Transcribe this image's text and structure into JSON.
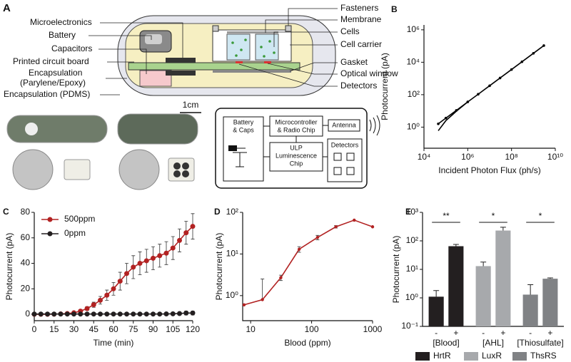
{
  "panel_a": {
    "panel": "A",
    "left_labels": [
      "Microelectronics",
      "Battery",
      "Capacitors",
      "Printed circuit board",
      "Encapsulation",
      "(Parylene/Epoxy)",
      "Encapsulation (PDMS)"
    ],
    "right_labels": [
      "Fasteners",
      "Membrane",
      "Cells",
      "Cell carrier",
      "Gasket",
      "Optical window",
      "Detectors"
    ],
    "scale_bar": "1cm",
    "block_diagram": {
      "battery": [
        "Battery",
        "& Caps"
      ],
      "microcontroller": [
        "Microcontroller",
        "& Radio Chip"
      ],
      "antenna": "Antenna",
      "luminescence": [
        "ULP",
        "Luminescence",
        "Chip"
      ],
      "detectors": "Detectors"
    }
  },
  "chart_data": [
    {
      "type": "line",
      "panel": "B",
      "xlabel": "Incident Photon Flux  (ph/s)",
      "ylabel": "Photocurrent (pA)",
      "xlog": true,
      "ylog": true,
      "x": [
        45000,
        100000,
        300000,
        1000000,
        3000000,
        10000000,
        30000000,
        100000000,
        300000000,
        1000000000,
        3000000000
      ],
      "series": [
        {
          "color": "#000000",
          "markers": true,
          "values": [
            1.6,
            3.6,
            10.7,
            36,
            107,
            356,
            1070,
            3560,
            10700,
            35600,
            107000
          ]
        },
        {
          "color": "#000000",
          "values": [
            0.6,
            2.5,
            9.5,
            36,
            null,
            null,
            null,
            null,
            null,
            null,
            null
          ]
        }
      ],
      "xlim": [
        10000,
        10000000000
      ],
      "ylim": [
        0.05,
        2000000
      ],
      "xticks": [
        {
          "value": 10000,
          "label": "10⁴"
        },
        {
          "value": 1000000,
          "label": "10⁶"
        },
        {
          "value": 100000000,
          "label": "10⁸"
        },
        {
          "value": 10000000000,
          "label": "10¹⁰"
        }
      ],
      "yticks": [
        {
          "value": 1,
          "label": "10⁰"
        },
        {
          "value": 100,
          "label": "10²"
        },
        {
          "value": 10000,
          "label": "10⁴"
        },
        {
          "value": 1000000,
          "label": "10⁶"
        }
      ]
    },
    {
      "type": "line",
      "panel": "C",
      "xlabel": "Time (min)",
      "ylabel": "Photocurrent (pA)",
      "legend": "upper left",
      "x": [
        0,
        5,
        10,
        15,
        20,
        25,
        30,
        35,
        40,
        45,
        50,
        55,
        60,
        65,
        70,
        75,
        80,
        85,
        90,
        95,
        100,
        105,
        110,
        115,
        120
      ],
      "series": [
        {
          "name": "500ppm",
          "color": "#b22222",
          "markers": true,
          "values": [
            0,
            0,
            0,
            0.1,
            0.3,
            0.6,
            1.2,
            2.5,
            4.5,
            7.5,
            11,
            15,
            20,
            26,
            32,
            37,
            40,
            42,
            44,
            46,
            48,
            52,
            58,
            64,
            69
          ],
          "errors": [
            0.3,
            0.3,
            0.3,
            0.3,
            0.4,
            0.5,
            0.7,
            1,
            1.5,
            2,
            3,
            4,
            5,
            7,
            8,
            9,
            9,
            9,
            9,
            9,
            9,
            9,
            9,
            9,
            10
          ]
        },
        {
          "name": "0ppm",
          "color": "#231f20",
          "markers": true,
          "values": [
            0.2,
            0.2,
            0.2,
            0.2,
            0.2,
            0.2,
            0.2,
            0.2,
            0.2,
            0.2,
            0.2,
            0.2,
            0.2,
            0.2,
            0.2,
            0.2,
            0.2,
            0.2,
            0.2,
            0.2,
            0.3,
            0.4,
            0.6,
            1,
            1
          ],
          "errors": [
            0.3,
            0.3,
            0.3,
            0.3,
            0.3,
            0.3,
            0.3,
            0.3,
            0.3,
            0.3,
            0.3,
            0.3,
            0.3,
            0.3,
            0.3,
            0.3,
            0.3,
            0.3,
            0.3,
            0.3,
            0.4,
            0.5,
            1,
            1.5,
            1.5
          ]
        }
      ],
      "xlim": [
        0,
        120
      ],
      "ylim": [
        -5,
        80
      ],
      "xticks": [
        0,
        15,
        30,
        45,
        60,
        75,
        90,
        105,
        120
      ],
      "yticks": [
        0,
        20,
        40,
        60,
        80
      ]
    },
    {
      "type": "line",
      "panel": "D",
      "xlabel": "Blood (ppm)",
      "ylabel": "Photocurrent (pA)",
      "xlog": true,
      "ylog": true,
      "x": [
        7.8,
        15.6,
        31.25,
        62.5,
        125,
        250,
        500,
        1000
      ],
      "series": [
        {
          "color": "#b22222",
          "markers": true,
          "values": [
            0.6,
            0.8,
            2.7,
            13,
            25,
            45,
            65,
            45
          ],
          "errors": [
            0,
            1.7,
            0.4,
            2,
            3,
            3,
            0,
            0
          ]
        }
      ],
      "xlim": [
        7.4,
        1000
      ],
      "ylim": [
        0.25,
        100
      ],
      "xticks": [
        10,
        100,
        1000
      ],
      "yticks": [
        {
          "value": 1,
          "label": "10⁰"
        },
        {
          "value": 10,
          "label": "10¹"
        },
        {
          "value": 100,
          "label": "10²"
        }
      ]
    },
    {
      "type": "bar",
      "panel": "E",
      "ylabel": "Photocurrent (pA)",
      "ylog": true,
      "legend": "bottom",
      "categories": [
        "-",
        "+"
      ],
      "group_labels": [
        "[Blood]",
        "[AHL]",
        "[Thiosulfate]"
      ],
      "significance": [
        "**",
        "*",
        "*"
      ],
      "series": [
        {
          "name": "HrtR",
          "color": "#231f20",
          "values": [
            1.1,
            65
          ],
          "errors": [
            0.7,
            10
          ]
        },
        {
          "name": "LuxR",
          "color": "#a7a9ac",
          "values": [
            13,
            230
          ],
          "errors": [
            5,
            70
          ]
        },
        {
          "name": "ThsRS",
          "color": "#808285",
          "values": [
            1.3,
            4.7
          ],
          "errors": [
            1.6,
            0.3
          ]
        }
      ],
      "ylim": [
        0.1,
        1000
      ],
      "yticks": [
        {
          "value": 0.1,
          "label": "10⁻¹"
        },
        {
          "value": 1,
          "label": "10⁰"
        },
        {
          "value": 10,
          "label": "10¹"
        },
        {
          "value": 100,
          "label": "10²"
        },
        {
          "value": 1000,
          "label": "10³"
        }
      ]
    }
  ]
}
